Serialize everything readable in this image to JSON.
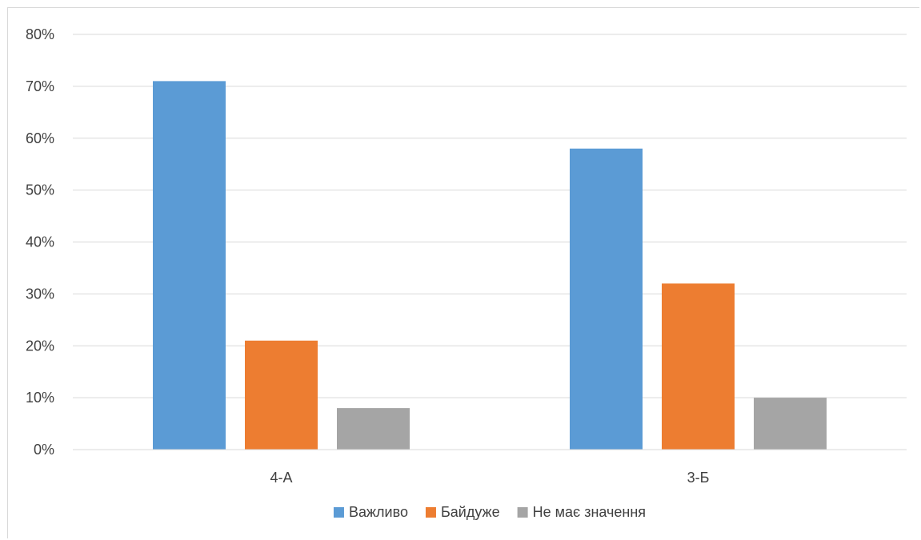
{
  "chart_data": {
    "type": "bar",
    "title": "",
    "xlabel": "",
    "ylabel": "",
    "categories": [
      "4-А",
      "3-Б"
    ],
    "series": [
      {
        "name": "Важливо",
        "values": [
          71,
          58
        ],
        "color": "#5b9bd5"
      },
      {
        "name": "Байдуже",
        "values": [
          21,
          32
        ],
        "color": "#ed7d31"
      },
      {
        "name": "Не має значення",
        "values": [
          8,
          10
        ],
        "color": "#a5a5a5"
      }
    ],
    "ylim": [
      0,
      80
    ],
    "yticks": [
      0,
      10,
      20,
      30,
      40,
      50,
      60,
      70,
      80
    ],
    "ytick_labels": [
      "0%",
      "10%",
      "20%",
      "30%",
      "40%",
      "50%",
      "60%",
      "70%",
      "80%"
    ],
    "grid": true,
    "legend": "bottom"
  }
}
